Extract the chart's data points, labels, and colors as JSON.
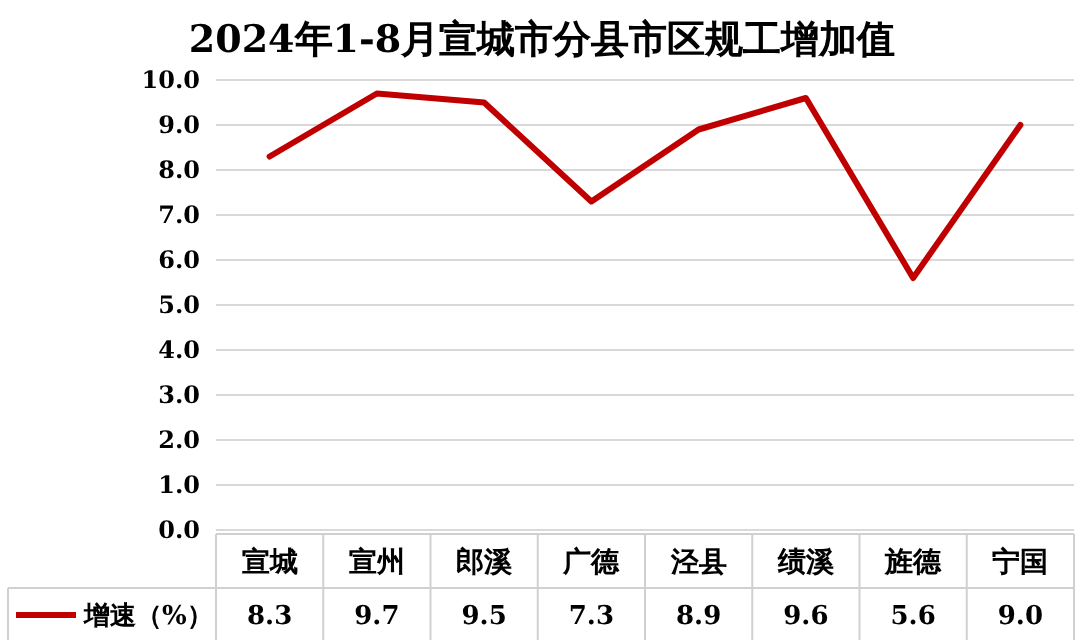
{
  "chart_data": {
    "type": "line",
    "title": "2024年1-8月宣城市分县市区规工增加值",
    "categories": [
      "宣城",
      "宣州",
      "郎溪",
      "广德",
      "泾县",
      "绩溪",
      "旌德",
      "宁国"
    ],
    "series": [
      {
        "name": "增速（%）",
        "color": "#c00000",
        "values": [
          8.3,
          9.7,
          9.5,
          7.3,
          8.9,
          9.6,
          5.6,
          9.0
        ],
        "value_labels": [
          "8.3",
          "9.7",
          "9.5",
          "7.3",
          "8.9",
          "9.6",
          "5.6",
          "9.0"
        ]
      }
    ],
    "ylim": [
      0,
      10
    ],
    "yticks": [
      {
        "value": 0,
        "label": "0.0"
      },
      {
        "value": 1,
        "label": "1.0"
      },
      {
        "value": 2,
        "label": "2.0"
      },
      {
        "value": 3,
        "label": "3.0"
      },
      {
        "value": 4,
        "label": "4.0"
      },
      {
        "value": 5,
        "label": "5.0"
      },
      {
        "value": 6,
        "label": "6.0"
      },
      {
        "value": 7,
        "label": "7.0"
      },
      {
        "value": 8,
        "label": "8.0"
      },
      {
        "value": 9,
        "label": "9.0"
      },
      {
        "value": 10,
        "label": "10.0"
      }
    ],
    "grid": "y",
    "legend": "bottom",
    "marker": "none",
    "line_style": "solid"
  }
}
